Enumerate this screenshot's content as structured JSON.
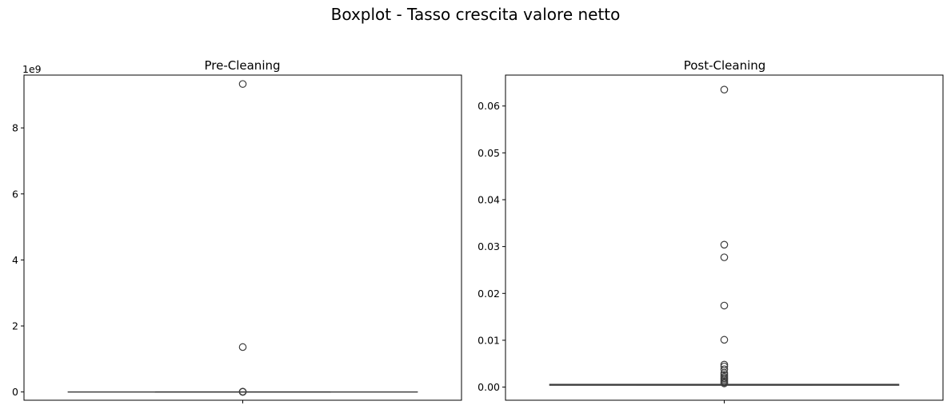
{
  "figure": {
    "title": "Boxplot - Tasso crescita valore netto"
  },
  "chart_data": [
    {
      "type": "boxplot",
      "title": "Pre-Cleaning",
      "xlabel": "",
      "ylabel": "",
      "ylim": [
        -250000000.0,
        9600000000.0
      ],
      "yticks": [
        0,
        2000000000.0,
        4000000000.0,
        6000000000.0,
        8000000000.0
      ],
      "ytick_labels": [
        "0",
        "2",
        "4",
        "6",
        "8"
      ],
      "y_offset_label": "1e9",
      "box": {
        "whisker_low": 0,
        "q1": 0,
        "median": 0,
        "q3": 0,
        "whisker_high": 0
      },
      "outliers": [
        9330000000.0,
        1360000000.0,
        10000000.0,
        5000000.0,
        2000000.0
      ],
      "grid": false
    },
    {
      "type": "boxplot",
      "title": "Post-Cleaning",
      "xlabel": "",
      "ylabel": "",
      "ylim": [
        -0.0028,
        0.0666
      ],
      "yticks": [
        0.0,
        0.01,
        0.02,
        0.03,
        0.04,
        0.05,
        0.06
      ],
      "ytick_labels": [
        "0.00",
        "0.01",
        "0.02",
        "0.03",
        "0.04",
        "0.05",
        "0.06"
      ],
      "y_offset_label": "",
      "box": {
        "whisker_low": 0.0004,
        "q1": 0.00045,
        "median": 0.0005,
        "q3": 0.00055,
        "whisker_high": 0.0006
      },
      "outliers": [
        0.0635,
        0.0304,
        0.0277,
        0.0174,
        0.0101,
        0.0048,
        0.0044,
        0.0038,
        0.003,
        0.0026,
        0.0022,
        0.0019,
        0.0016,
        0.0013,
        0.001,
        0.0008
      ],
      "grid": false
    }
  ]
}
